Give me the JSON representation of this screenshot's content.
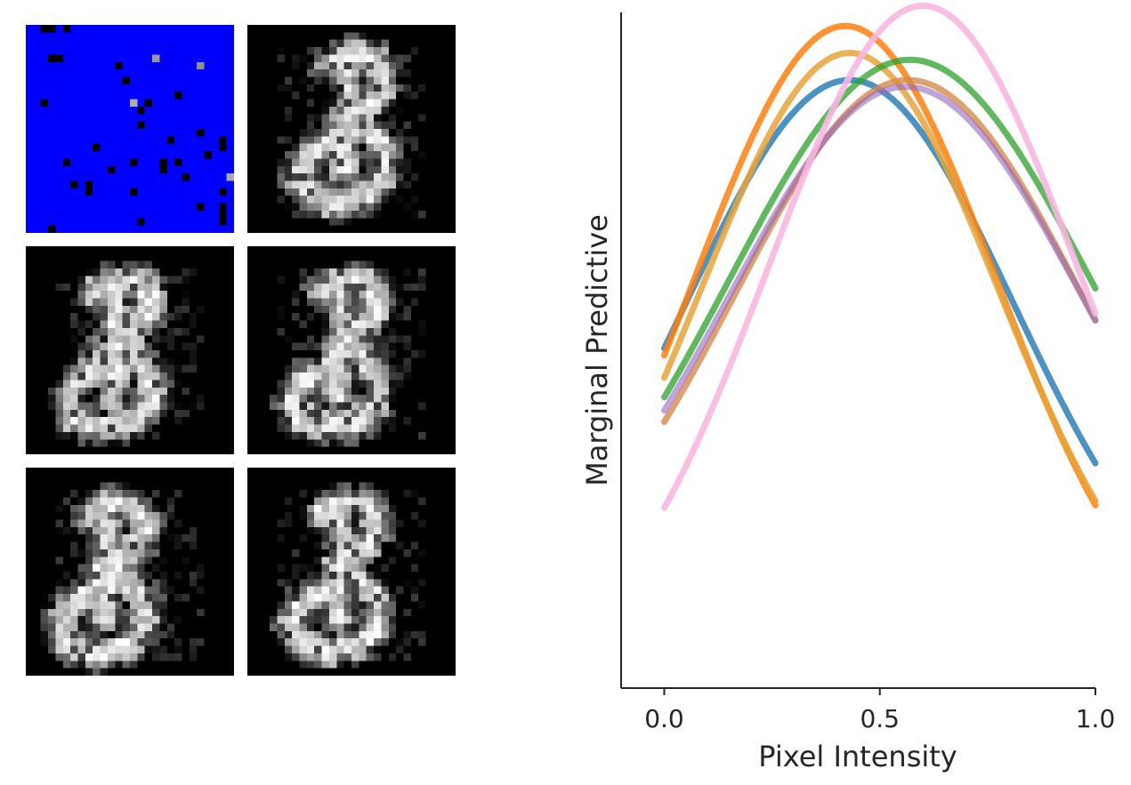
{
  "image_grid": {
    "panels": [
      {
        "name": "mask-panel",
        "background": "#0000ff"
      },
      {
        "name": "sample-1"
      },
      {
        "name": "sample-2"
      },
      {
        "name": "sample-3"
      },
      {
        "name": "sample-4"
      },
      {
        "name": "sample-5"
      }
    ]
  },
  "chart_data": {
    "type": "line",
    "title": "",
    "xlabel": "Pixel Intensity",
    "ylabel": "Marginal Predictive",
    "xlim": [
      -0.1,
      1.0
    ],
    "ylim": [
      0.0,
      1.0
    ],
    "xticks": [
      "0.0",
      "0.5",
      "1.0"
    ],
    "yticks_visible": false,
    "grid": false,
    "legend": "none",
    "series": [
      {
        "color": "#1f77b4",
        "alpha": 0.8,
        "mu": 0.43,
        "sigma": 0.38,
        "peak": 0.84,
        "base": 0.06
      },
      {
        "color": "#ff7f0e",
        "alpha": 0.85,
        "mu": 0.42,
        "sigma": 0.35,
        "peak": 0.95,
        "base": 0.03
      },
      {
        "color": "#e8a33a",
        "alpha": 0.85,
        "mu": 0.43,
        "sigma": 0.345,
        "peak": 0.89,
        "base": 0.05
      },
      {
        "color": "#2ca02c",
        "alpha": 0.75,
        "mu": 0.57,
        "sigma": 0.42,
        "peak": 0.83,
        "base": 0.1
      },
      {
        "color": "#d68a4c",
        "alpha": 0.8,
        "mu": 0.566,
        "sigma": 0.4,
        "peak": 0.8,
        "base": 0.1
      },
      {
        "color": "#9467bd",
        "alpha": 0.6,
        "mu": 0.56,
        "sigma": 0.41,
        "peak": 0.79,
        "base": 0.1
      },
      {
        "color": "#f8b7e0",
        "alpha": 0.9,
        "mu": 0.6,
        "sigma": 0.36,
        "peak": 0.99,
        "base": 0.02
      }
    ]
  }
}
